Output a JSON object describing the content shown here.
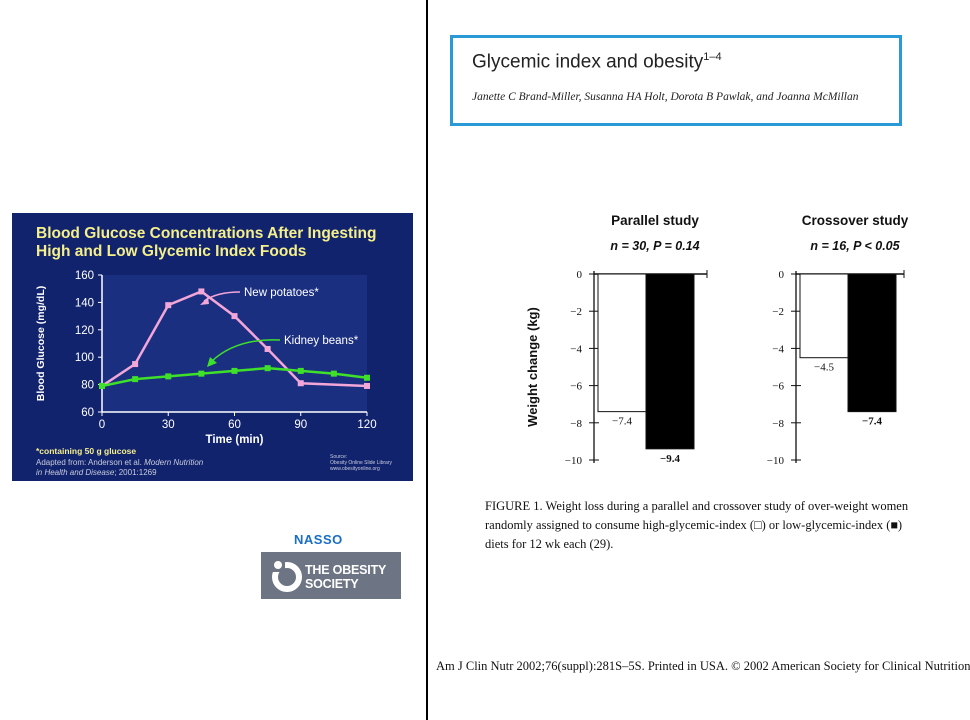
{
  "slide": {
    "title_line1": "Blood Glucose Concentrations After Ingesting",
    "title_line2": "High and Low Glycemic Index Foods",
    "footnote": "*containing 50 g glucose",
    "adapted_line1": "Adapted from: Anderson et al. ",
    "adapted_italic": "Modern Nutrition",
    "adapted_line2_italic": "in Health and Disease",
    "adapted_line2_rest": "; 2001:1269",
    "source_line1": "Source:",
    "source_line2": "Obesity Online Slide Library",
    "source_line3": "www.obesityonline.org"
  },
  "logo": {
    "nasso": "NASSO",
    "line1": "THE OBESITY",
    "line2": "SOCIETY"
  },
  "article": {
    "title": "Glycemic index and obesity",
    "title_sup": "1–4",
    "authors": "Janette C Brand-Miller, Susanna HA Holt, Dorota B Pawlak, and Joanna McMillan",
    "caption": "FIGURE 1. Weight loss during a parallel and crossover study of over-weight women randomly assigned to consume high-glycemic-index (□) or low-glycemic-index (■) diets for 12 wk each (29).",
    "citation": "Am J Clin Nutr 2002;76(suppl):281S–5S. Printed in USA. © 2002 American Society for Clinical Nutrition"
  },
  "chart_data": [
    {
      "type": "line",
      "xlabel": "Time (min)",
      "ylabel": "Blood Glucose (mg/dL)",
      "xlim": [
        0,
        120
      ],
      "ylim": [
        60,
        160
      ],
      "xticks": [
        "0",
        "30",
        "60",
        "90",
        "120"
      ],
      "yticks": [
        "60",
        "80",
        "100",
        "120",
        "140",
        "160"
      ],
      "series": [
        {
          "name": "New potatoes*",
          "color": "#f3a6d8",
          "x": [
            0,
            15,
            30,
            45,
            60,
            75,
            90,
            120
          ],
          "y": [
            79,
            95,
            138,
            148,
            130,
            106,
            81,
            79
          ]
        },
        {
          "name": "Kidney beans*",
          "color": "#3ee02a",
          "x": [
            0,
            15,
            30,
            45,
            60,
            75,
            90,
            105,
            120
          ],
          "y": [
            79,
            84,
            86,
            88,
            90,
            92,
            90,
            88,
            85
          ]
        }
      ]
    },
    {
      "type": "bar",
      "title": "Parallel study",
      "subtitle": "n = 30, P = 0.14",
      "ylabel": "Weight change (kg)",
      "ylim": [
        -10,
        0
      ],
      "yticks": [
        "0",
        "−2",
        "−4",
        "−6",
        "−8",
        "−10"
      ],
      "categories": [
        "high-glycemic-index",
        "low-glycemic-index"
      ],
      "values": [
        -7.4,
        -9.4
      ],
      "value_labels": [
        "−7.4",
        "−9.4"
      ],
      "colors": [
        "#ffffff",
        "#000000"
      ]
    },
    {
      "type": "bar",
      "title": "Crossover study",
      "subtitle": "n = 16, P < 0.05",
      "ylim": [
        -10,
        0
      ],
      "yticks": [
        "0",
        "−2",
        "−4",
        "−6",
        "−8",
        "−10"
      ],
      "categories": [
        "high-glycemic-index",
        "low-glycemic-index"
      ],
      "values": [
        -4.5,
        -7.4
      ],
      "value_labels": [
        "−4.5",
        "−7.4"
      ],
      "colors": [
        "#ffffff",
        "#000000"
      ]
    }
  ]
}
